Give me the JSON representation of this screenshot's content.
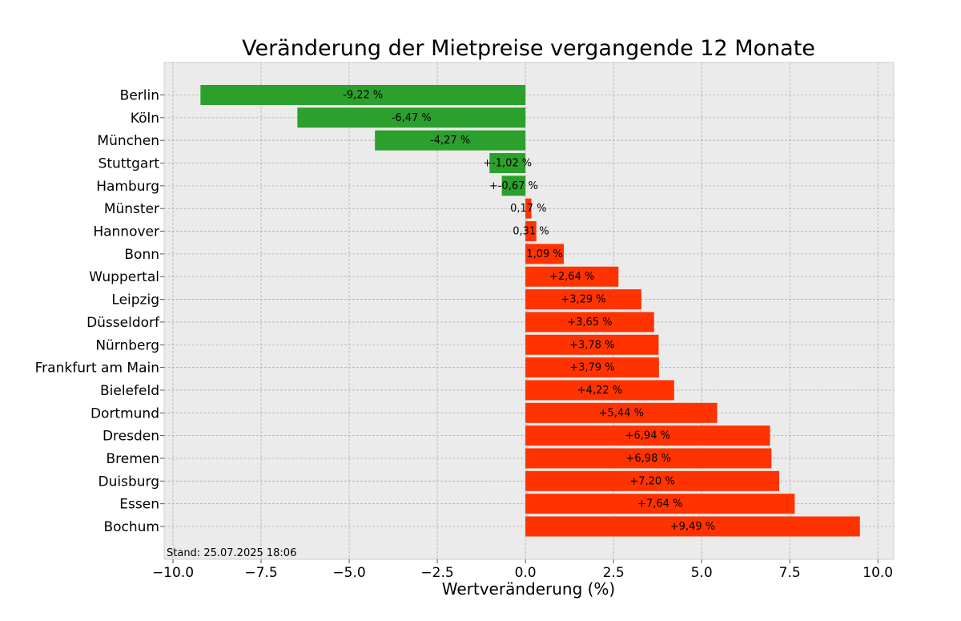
{
  "chart_data": {
    "type": "bar",
    "orientation": "horizontal",
    "title": "Veränderung der Mietpreise vergangende 12 Monate",
    "xlabel": "Wertveränderung (%)",
    "ylabel": "",
    "xlim": [
      -10.25,
      10.45
    ],
    "xticks": [
      -10.0,
      -7.5,
      -5.0,
      -2.5,
      0.0,
      2.5,
      5.0,
      7.5,
      10.0
    ],
    "xtick_labels": [
      "−10.0",
      "−7.5",
      "−5.0",
      "−2.5",
      "0.0",
      "2.5",
      "5.0",
      "7.5",
      "10.0"
    ],
    "grid": true,
    "categories": [
      "Berlin",
      "Köln",
      "München",
      "Stuttgart",
      "Hamburg",
      "Münster",
      "Hannover",
      "Bonn",
      "Wuppertal",
      "Leipzig",
      "Düsseldorf",
      "Nürnberg",
      "Frankfurt am Main",
      "Bielefeld",
      "Dortmund",
      "Dresden",
      "Bremen",
      "Duisburg",
      "Essen",
      "Bochum"
    ],
    "values": [
      -9.22,
      -6.47,
      -4.27,
      -1.02,
      -0.67,
      0.17,
      0.31,
      1.09,
      2.64,
      3.29,
      3.65,
      3.78,
      3.79,
      4.22,
      5.44,
      6.94,
      6.98,
      7.2,
      7.64,
      9.49
    ],
    "labels": [
      "-9,22 %",
      "-6,47 %",
      "-4,27 %",
      "+-1,02 %",
      "+-0,67 %",
      "0,17 %",
      "0,31 %",
      "1,09 %",
      "+2,64 %",
      "+3,29 %",
      "+3,65 %",
      "+3,78 %",
      "+3,79 %",
      "+4,22 %",
      "+5,44 %",
      "+6,94 %",
      "+6,98 %",
      "+7,20 %",
      "+7,64 %",
      "+9,49 %"
    ],
    "colors": {
      "negative": "#2ca02c",
      "positive": "#ff3300",
      "plot_background": "#ebebeb",
      "grid": "#b0b0b0"
    },
    "footnote": "Stand: 25.07.2025 18:06"
  }
}
